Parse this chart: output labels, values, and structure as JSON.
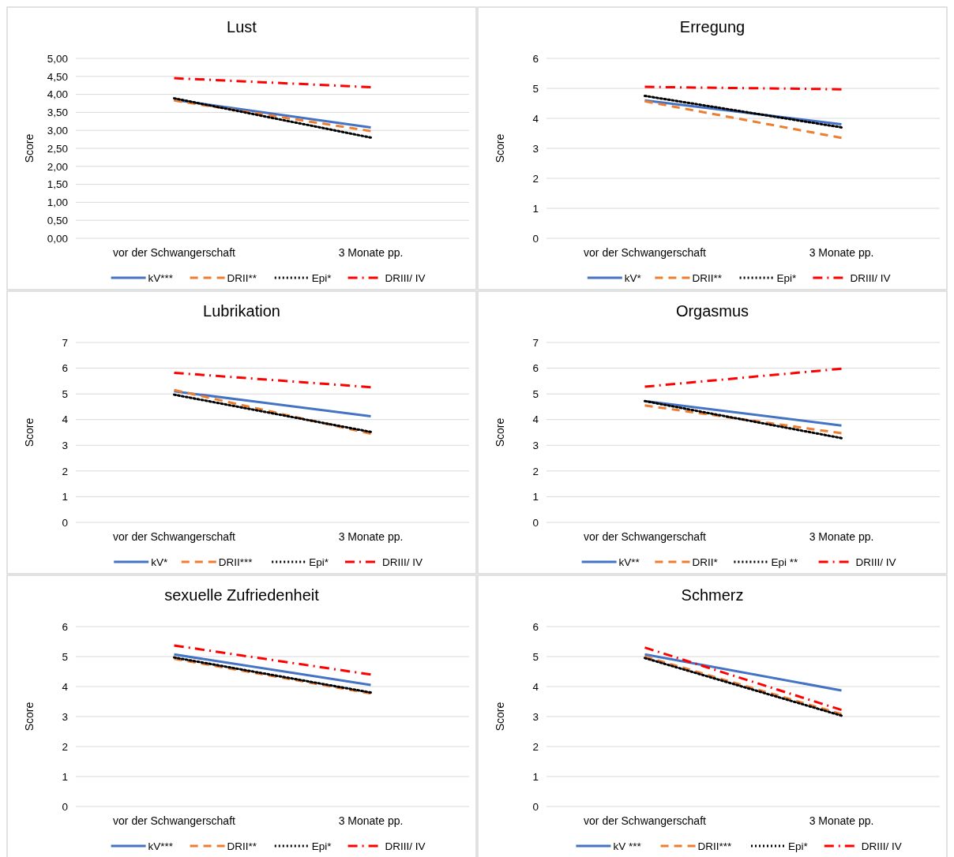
{
  "chart_data": [
    {
      "type": "line",
      "title": "Lust",
      "ylabel": "Score",
      "categories": [
        "vor der Schwangerschaft",
        "3 Monate pp."
      ],
      "ylim": [
        0,
        5
      ],
      "yticks": [
        {
          "value": 0,
          "label": "0,00"
        },
        {
          "value": 0.5,
          "label": "0,50"
        },
        {
          "value": 1,
          "label": "1,00"
        },
        {
          "value": 1.5,
          "label": "1,50"
        },
        {
          "value": 2,
          "label": "2,00"
        },
        {
          "value": 2.5,
          "label": "2,50"
        },
        {
          "value": 3,
          "label": "3,00"
        },
        {
          "value": 3.5,
          "label": "3,50"
        },
        {
          "value": 4,
          "label": "4,00"
        },
        {
          "value": 4.5,
          "label": "4,50"
        },
        {
          "value": 5,
          "label": "5,00"
        }
      ],
      "grid": "y",
      "legend": "bottom",
      "marker": "none",
      "series": [
        {
          "name": "kV***",
          "color": "#4472c4",
          "line_style": "solid",
          "values": [
            3.85,
            3.08
          ]
        },
        {
          "name": "DRII**",
          "color": "#ed7d31",
          "line_style": "dashed",
          "values": [
            3.83,
            2.98
          ]
        },
        {
          "name": "Epi*",
          "color": "#000000",
          "line_style": "dotted",
          "values": [
            3.89,
            2.8
          ]
        },
        {
          "name": "DRIII/ IV",
          "color": "#ff0000",
          "line_style": "dashdot",
          "values": [
            4.45,
            4.2
          ]
        }
      ]
    },
    {
      "type": "line",
      "title": "Erregung",
      "ylabel": "Score",
      "categories": [
        "vor der Schwangerschaft",
        "3 Monate pp."
      ],
      "ylim": [
        0,
        6
      ],
      "yticks": [
        0,
        1,
        2,
        3,
        4,
        5,
        6
      ],
      "grid": "y",
      "legend": "bottom",
      "marker": "none",
      "series": [
        {
          "name": "kV*",
          "color": "#4472c4",
          "line_style": "solid",
          "values": [
            4.6,
            3.8
          ]
        },
        {
          "name": "DRII**",
          "color": "#ed7d31",
          "line_style": "dashed",
          "values": [
            4.57,
            3.35
          ]
        },
        {
          "name": "Epi*",
          "color": "#000000",
          "line_style": "dotted",
          "values": [
            4.75,
            3.7
          ]
        },
        {
          "name": "DRIII/ IV",
          "color": "#ff0000",
          "line_style": "dashdot",
          "values": [
            5.05,
            4.97
          ]
        }
      ]
    },
    {
      "type": "line",
      "title": "Lubrikation",
      "ylabel": "Score",
      "categories": [
        "vor der Schwangerschaft",
        "3 Monate pp."
      ],
      "ylim": [
        0,
        7
      ],
      "yticks": [
        0,
        1,
        2,
        3,
        4,
        5,
        6,
        7
      ],
      "grid": "y",
      "legend": "bottom",
      "marker": "none",
      "series": [
        {
          "name": "kV*",
          "color": "#4472c4",
          "line_style": "solid",
          "values": [
            5.1,
            4.13
          ]
        },
        {
          "name": "DRII***",
          "color": "#ed7d31",
          "line_style": "dashed",
          "values": [
            5.15,
            3.45
          ]
        },
        {
          "name": "Epi*",
          "color": "#000000",
          "line_style": "dotted",
          "values": [
            4.97,
            3.52
          ]
        },
        {
          "name": "DRIII/ IV",
          "color": "#ff0000",
          "line_style": "dashdot",
          "values": [
            5.82,
            5.26
          ]
        }
      ]
    },
    {
      "type": "line",
      "title": "Orgasmus",
      "ylabel": "Score",
      "categories": [
        "vor der Schwangerschaft",
        "3 Monate pp."
      ],
      "ylim": [
        0,
        7
      ],
      "yticks": [
        0,
        1,
        2,
        3,
        4,
        5,
        6,
        7
      ],
      "grid": "y",
      "legend": "bottom",
      "marker": "none",
      "series": [
        {
          "name": "kV**",
          "color": "#4472c4",
          "line_style": "solid",
          "values": [
            4.72,
            3.77
          ]
        },
        {
          "name": "DRII*",
          "color": "#ed7d31",
          "line_style": "dashed",
          "values": [
            4.55,
            3.47
          ]
        },
        {
          "name": "Epi **",
          "color": "#000000",
          "line_style": "dotted",
          "values": [
            4.72,
            3.28
          ]
        },
        {
          "name": "DRIII/ IV",
          "color": "#ff0000",
          "line_style": "dashdot",
          "values": [
            5.28,
            5.98
          ]
        }
      ]
    },
    {
      "type": "line",
      "title": "sexuelle Zufriedenheit",
      "ylabel": "Score",
      "categories": [
        "vor der Schwangerschaft",
        "3 Monate pp."
      ],
      "ylim": [
        0,
        6
      ],
      "yticks": [
        0,
        1,
        2,
        3,
        4,
        5,
        6
      ],
      "grid": "y",
      "legend": "bottom",
      "marker": "none",
      "series": [
        {
          "name": "kV***",
          "color": "#4472c4",
          "line_style": "solid",
          "values": [
            5.07,
            4.05
          ]
        },
        {
          "name": "DRII**",
          "color": "#ed7d31",
          "line_style": "dashed",
          "values": [
            4.93,
            3.77
          ]
        },
        {
          "name": "Epi*",
          "color": "#000000",
          "line_style": "dotted",
          "values": [
            4.97,
            3.8
          ]
        },
        {
          "name": "DRIII/ IV",
          "color": "#ff0000",
          "line_style": "dashdot",
          "values": [
            5.37,
            4.4
          ]
        }
      ]
    },
    {
      "type": "line",
      "title": "Schmerz",
      "ylabel": "Score",
      "categories": [
        "vor der Schwangerschaft",
        "3 Monate pp."
      ],
      "ylim": [
        0,
        6
      ],
      "yticks": [
        0,
        1,
        2,
        3,
        4,
        5,
        6
      ],
      "grid": "y",
      "legend": "bottom",
      "marker": "none",
      "series": [
        {
          "name": "kV ***",
          "color": "#4472c4",
          "line_style": "solid",
          "values": [
            5.07,
            3.87
          ]
        },
        {
          "name": "DRII***",
          "color": "#ed7d31",
          "line_style": "dashed",
          "values": [
            5.0,
            3.08
          ]
        },
        {
          "name": "Epi*",
          "color": "#000000",
          "line_style": "dotted",
          "values": [
            4.95,
            3.03
          ]
        },
        {
          "name": "DRIII/ IV",
          "color": "#ff0000",
          "line_style": "dashdot",
          "values": [
            5.3,
            3.22
          ]
        }
      ]
    }
  ]
}
